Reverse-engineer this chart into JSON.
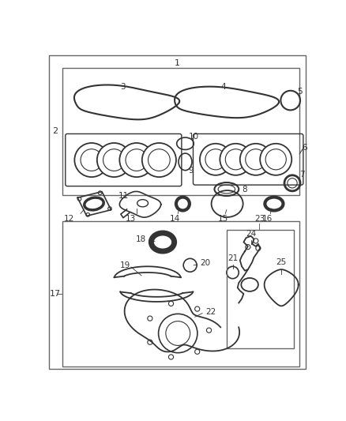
{
  "background_color": "#ffffff",
  "border_color": "#666666",
  "label_color": "#333333",
  "part_color": "#333333",
  "part_fill": "#e0e0e0"
}
